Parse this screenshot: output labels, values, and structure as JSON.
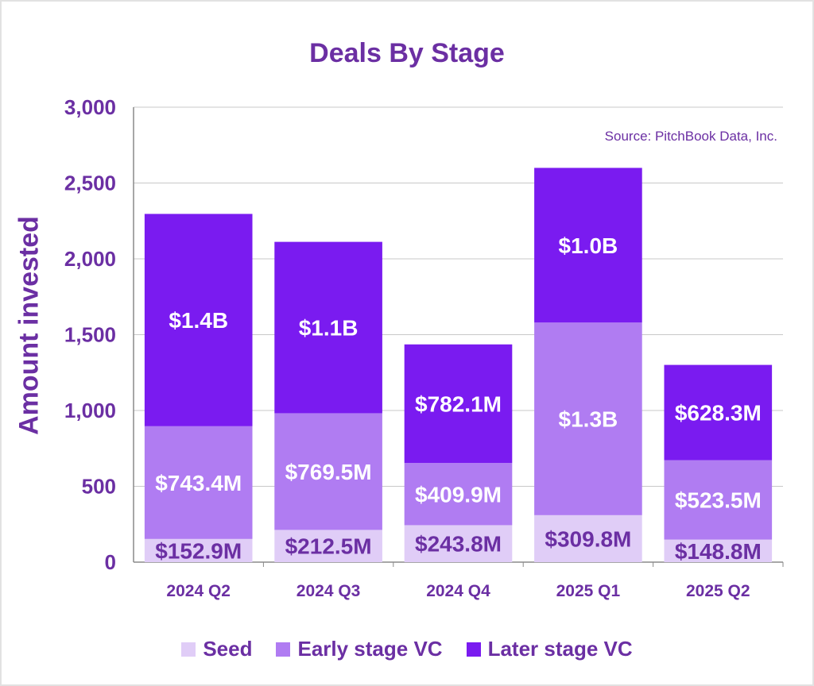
{
  "chart_data": {
    "type": "bar",
    "stacked": true,
    "title": "Deals By Stage",
    "ylabel": "Amount invested",
    "source": "Source: PitchBook Data, Inc.",
    "ylim": [
      0,
      3000
    ],
    "yticks": [
      0,
      500,
      1000,
      1500,
      2000,
      2500,
      3000
    ],
    "ytick_labels": [
      "0",
      "500",
      "1,000",
      "1,500",
      "2,000",
      "2,500",
      "3,000"
    ],
    "categories": [
      "2024 Q2",
      "2024 Q3",
      "2024 Q4",
      "2025 Q1",
      "2025 Q2"
    ],
    "grid": true,
    "legend_position": "bottom",
    "series": [
      {
        "name": "Seed",
        "color": "#e0cdf7",
        "label_color": "#6b2fa3",
        "values": [
          152.9,
          212.5,
          243.8,
          309.8,
          148.8
        ],
        "labels": [
          "$152.9M",
          "$212.5M",
          "$243.8M",
          "$309.8M",
          "$148.8M"
        ]
      },
      {
        "name": "Early stage VC",
        "color": "#b07cf2",
        "label_color": "#ffffff",
        "values": [
          743.4,
          769.5,
          409.9,
          1270,
          523.5
        ],
        "labels": [
          "$743.4M",
          "$769.5M",
          "$409.9M",
          "$1.3B",
          "$523.5M"
        ]
      },
      {
        "name": "Later stage VC",
        "color": "#7a1bf0",
        "label_color": "#ffffff",
        "values": [
          1400,
          1130,
          782.1,
          1020,
          628.3
        ],
        "labels": [
          "$1.4B",
          "$1.1B",
          "$782.1M",
          "$1.0B",
          "$628.3M"
        ]
      }
    ]
  }
}
